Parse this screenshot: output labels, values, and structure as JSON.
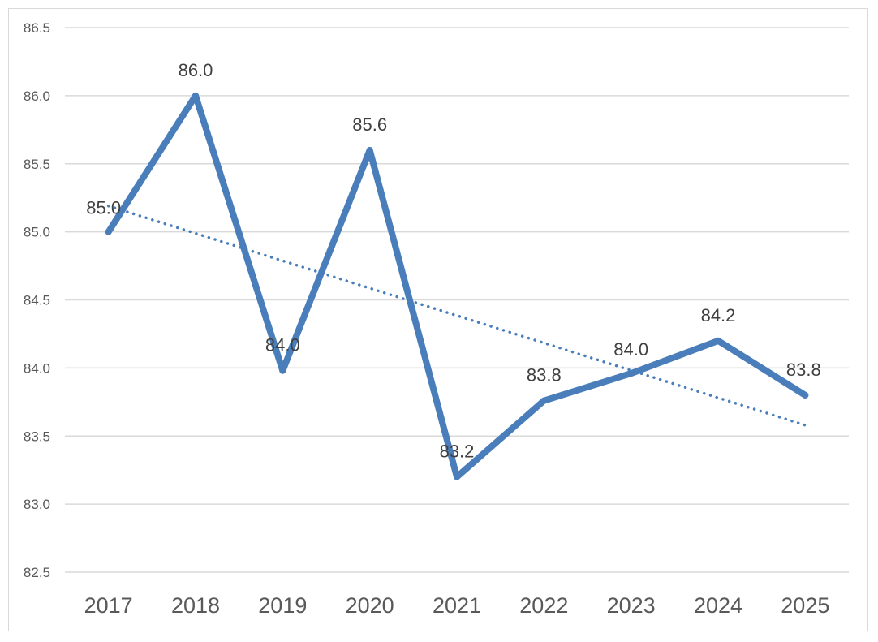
{
  "chart_data": {
    "type": "line",
    "title": "",
    "xlabel": "",
    "ylabel": "",
    "categories": [
      "2017",
      "2018",
      "2019",
      "2020",
      "2021",
      "2022",
      "2023",
      "2024",
      "2025"
    ],
    "series": [
      {
        "values": [
          85.0,
          86.0,
          83.98,
          85.6,
          83.2,
          83.76,
          83.96,
          84.2,
          83.8
        ],
        "labels": [
          "85.0",
          "86.0",
          "84.0",
          "85.6",
          "83.2",
          "83.8",
          "84.0",
          "84.2",
          "83.8"
        ],
        "color": "#4a7ebb",
        "trendline": {
          "type": "linear",
          "style": "dotted",
          "start": 85.19,
          "end": 83.58
        }
      }
    ],
    "ylim": [
      82.5,
      86.5
    ],
    "yticks": [
      "82.5",
      "83.0",
      "83.5",
      "84.0",
      "84.5",
      "85.0",
      "85.5",
      "86.0",
      "86.5"
    ],
    "grid": true,
    "legend": "none",
    "colors": {
      "line": "#4a7ebb",
      "grid": "#d9d9d9",
      "tick_text": "#595959",
      "label_text": "#404040"
    }
  }
}
